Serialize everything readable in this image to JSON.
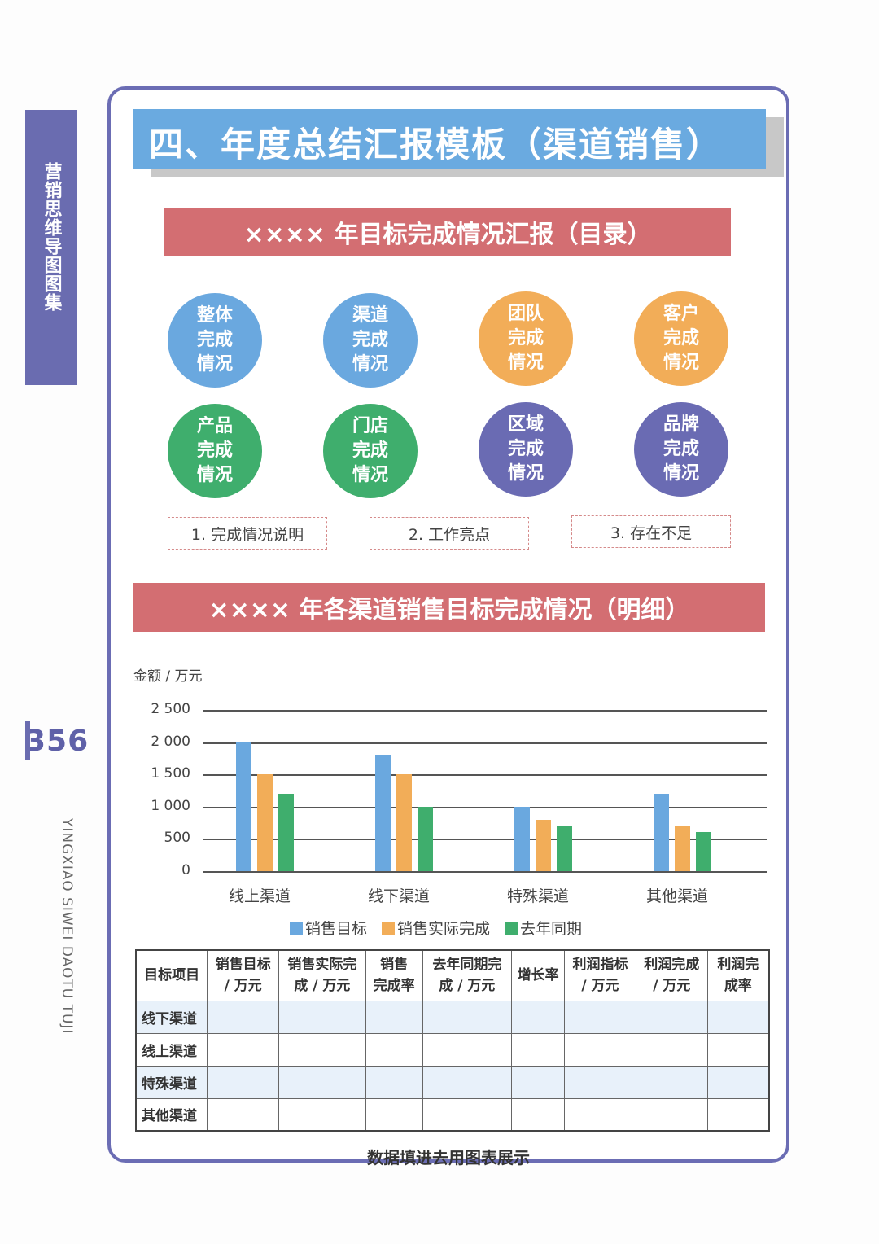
{
  "side": {
    "tab_label": "营销思维导图图集",
    "page_number": "356",
    "pinyin": "YINGXIAO SIWEI DAOTU TUJI"
  },
  "title": "四、年度总结汇报模板（渠道销售）",
  "section1": {
    "heading": "×××× 年目标完成情况汇报（目录）",
    "circles": [
      {
        "label": "整体\n完成\n情况",
        "color": "#6aa8df"
      },
      {
        "label": "渠道\n完成\n情况",
        "color": "#6aa8df"
      },
      {
        "label": "团队\n完成\n情况",
        "color": "#f2ad58"
      },
      {
        "label": "客户\n完成\n情况",
        "color": "#f2ad58"
      },
      {
        "label": "产品\n完成\n情况",
        "color": "#3fae6d"
      },
      {
        "label": "门店\n完成\n情况",
        "color": "#3fae6d"
      },
      {
        "label": "区域\n完成\n情况",
        "color": "#6a6bb3"
      },
      {
        "label": "品牌\n完成\n情况",
        "color": "#6a6bb3"
      }
    ],
    "notes": [
      "1. 完成情况说明",
      "2. 工作亮点",
      "3. 存在不足"
    ]
  },
  "section2": {
    "heading": "×××× 年各渠道销售目标完成情况（明细）",
    "axis_unit": "金额 / 万元"
  },
  "chart_data": {
    "type": "bar",
    "title": "",
    "xlabel": "",
    "ylabel": "金额 / 万元",
    "ylim": [
      0,
      2500
    ],
    "yticks": [
      "0",
      "500",
      "1 000",
      "1 500",
      "2 000",
      "2 500"
    ],
    "grid": true,
    "legend_position": "bottom",
    "categories": [
      "线上渠道",
      "线下渠道",
      "特殊渠道",
      "其他渠道"
    ],
    "series": [
      {
        "name": "销售目标",
        "color": "#6aa8df",
        "values": [
          2000,
          1800,
          1000,
          1200
        ]
      },
      {
        "name": "销售实际完成",
        "color": "#f2ad58",
        "values": [
          1500,
          1500,
          800,
          700
        ]
      },
      {
        "name": "去年同期",
        "color": "#3fae6d",
        "values": [
          1200,
          1000,
          700,
          600
        ]
      }
    ]
  },
  "table": {
    "headers": [
      "目标项目",
      "销售目标\n/ 万元",
      "销售实际完\n成 / 万元",
      "销售\n完成率",
      "去年同期完\n成 / 万元",
      "增长率",
      "利润指标\n/ 万元",
      "利润完成\n/ 万元",
      "利润完\n成率"
    ],
    "rows": [
      [
        "线下渠道",
        "",
        "",
        "",
        "",
        "",
        "",
        "",
        ""
      ],
      [
        "线上渠道",
        "",
        "",
        "",
        "",
        "",
        "",
        "",
        ""
      ],
      [
        "特殊渠道",
        "",
        "",
        "",
        "",
        "",
        "",
        "",
        ""
      ],
      [
        "其他渠道",
        "",
        "",
        "",
        "",
        "",
        "",
        "",
        ""
      ]
    ]
  },
  "footer_note": "数据填进去用图表展示"
}
